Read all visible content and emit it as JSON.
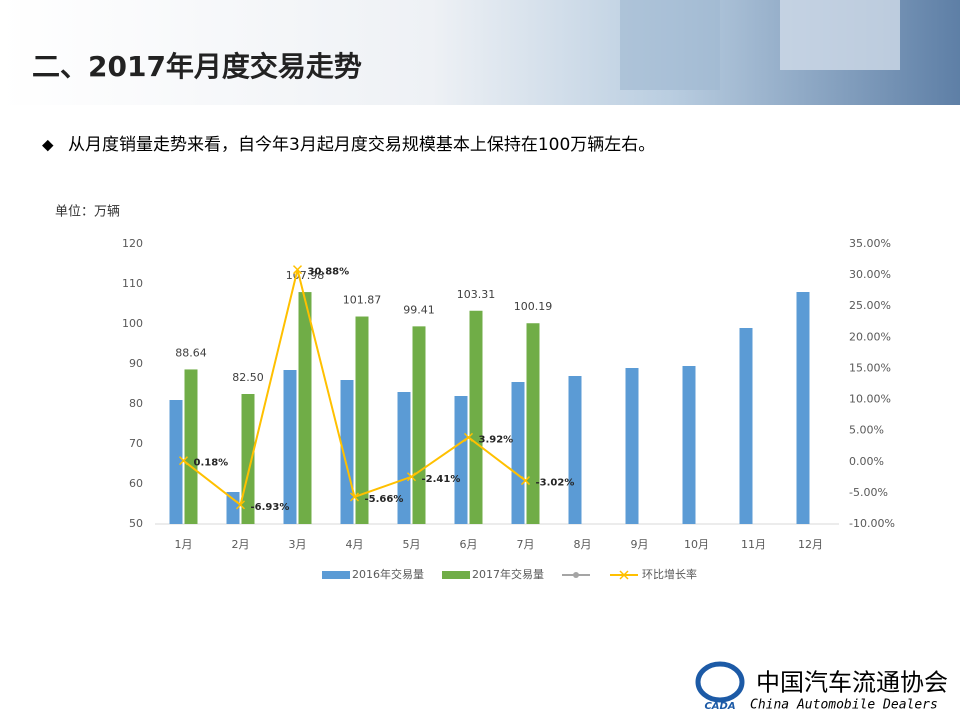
{
  "header": {
    "title": "二、2017年月度交易走势"
  },
  "bullet": "从月度销量走势来看，自今年3月起月度交易规模基本上保持在100万辆左右。",
  "footer": {
    "org": "中国汽车流通协会",
    "org_en": "China  Automobile Dealers",
    "logo": "CADA"
  },
  "chart_data": {
    "type": "bar",
    "unit_label": "单位：万辆",
    "categories": [
      "1月",
      "2月",
      "3月",
      "4月",
      "5月",
      "6月",
      "7月",
      "8月",
      "9月",
      "10月",
      "11月",
      "12月"
    ],
    "series": [
      {
        "name": "2016年交易量",
        "color": "#5b9bd5",
        "values": [
          81,
          58,
          88.5,
          86,
          83,
          82,
          85.5,
          87,
          89,
          89.5,
          99,
          108
        ]
      },
      {
        "name": "2017年交易量",
        "color": "#70ad47",
        "values": [
          88.64,
          82.5,
          107.98,
          101.87,
          99.41,
          103.31,
          100.19,
          null,
          null,
          null,
          null,
          null
        ],
        "value_labels": [
          "88.64",
          "82.50",
          "107.98",
          "101.87",
          "99.41",
          "103.31",
          "100.19",
          null,
          null,
          null,
          null,
          null
        ]
      },
      {
        "name": "环比增长率",
        "type": "line",
        "axis": "y2",
        "color": "#ffc000",
        "values": [
          0.18,
          -6.93,
          30.88,
          -5.66,
          -2.41,
          3.92,
          -3.02,
          null,
          null,
          null,
          null,
          null
        ],
        "value_labels": [
          "0.18%",
          "-6.93%",
          "30.88%",
          "-5.66%",
          "-2.41%",
          "3.92%",
          "-3.02%",
          null,
          null,
          null,
          null,
          null
        ]
      }
    ],
    "ylim": [
      50,
      120
    ],
    "yticks": [
      50,
      60,
      70,
      80,
      90,
      100,
      110,
      120
    ],
    "y2lim": [
      -10,
      35
    ],
    "y2ticks": [
      {
        "value": -10,
        "label": "-10.00%"
      },
      {
        "value": -5,
        "label": "-5.00%"
      },
      {
        "value": 0,
        "label": "0.00%"
      },
      {
        "value": 5,
        "label": "5.00%"
      },
      {
        "value": 10,
        "label": "10.00%"
      },
      {
        "value": 15,
        "label": "15.00%"
      },
      {
        "value": 20,
        "label": "20.00%"
      },
      {
        "value": 25,
        "label": "25.00%"
      },
      {
        "value": 30,
        "label": "30.00%"
      },
      {
        "value": 35,
        "label": "35.00%"
      }
    ],
    "legend": "bottom"
  }
}
